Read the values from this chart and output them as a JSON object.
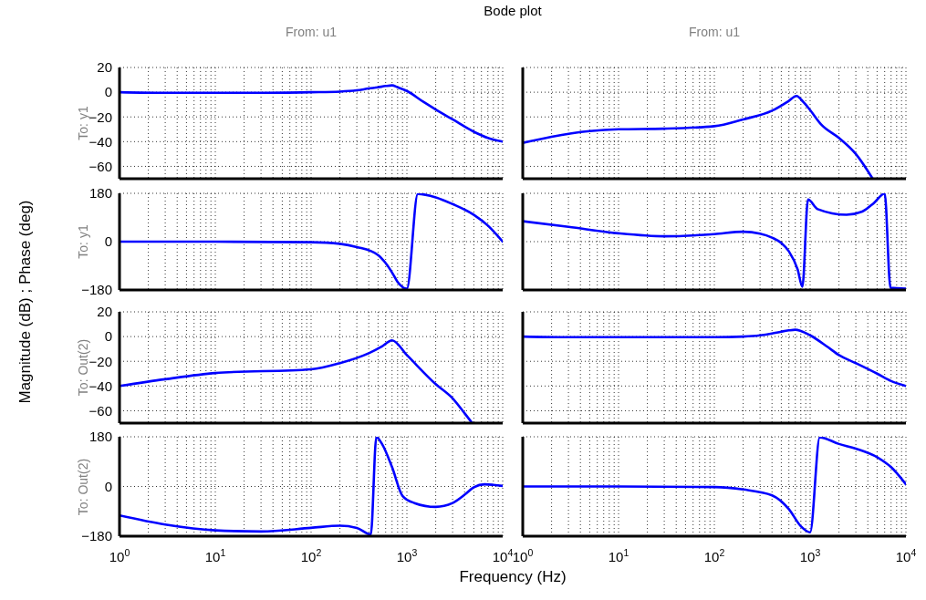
{
  "chart_data": [
    {
      "type": "line",
      "title": "Bode plot",
      "subtitle": "From: u1",
      "ylabel": "To: y1",
      "annotations": [
        "Magnitude (dB) ; Phase (deg)",
        "Frequency  (Hz)"
      ],
      "log": "x",
      "grid": true,
      "tick_labels": "y",
      "xlim": [
        1,
        10000
      ],
      "ylim": [
        -70,
        20
      ],
      "yticks": [
        -60,
        -40,
        -20,
        0,
        20
      ],
      "xticks": [
        1,
        2,
        3,
        4,
        5,
        6,
        7,
        8,
        9,
        10,
        20,
        30,
        40,
        50,
        60,
        70,
        80,
        90,
        100,
        200,
        300,
        400,
        500,
        600,
        700,
        800,
        900,
        1000,
        2000,
        3000,
        4000,
        5000,
        6000,
        7000,
        8000,
        9000,
        10000
      ],
      "x": [
        1,
        3,
        10,
        30,
        100,
        200,
        300,
        400,
        500,
        600,
        700,
        800,
        1000,
        1500,
        2000,
        3000,
        5000,
        7000,
        10000
      ],
      "series": [
        {
          "color": "#0000ff",
          "values": [
            0,
            -0.5,
            -0.5,
            -0.5,
            0,
            0.5,
            1.5,
            3,
            4,
            5,
            5.5,
            4,
            1,
            -8,
            -14,
            -22,
            -32,
            -37,
            -40
          ]
        }
      ]
    },
    {
      "type": "line",
      "subtitle": "From: u1",
      "log": "x",
      "grid": true,
      "tick_labels": false,
      "xlim": [
        1,
        10000
      ],
      "ylim": [
        -70,
        20
      ],
      "yticks": [
        -60,
        -40,
        -20,
        0,
        20
      ],
      "xticks": [
        1,
        2,
        3,
        4,
        5,
        6,
        7,
        8,
        9,
        10,
        20,
        30,
        40,
        50,
        60,
        70,
        80,
        90,
        100,
        200,
        300,
        400,
        500,
        600,
        700,
        800,
        900,
        1000,
        2000,
        3000,
        4000,
        5000,
        6000,
        7000,
        8000,
        9000,
        10000
      ],
      "x": [
        1,
        2,
        5,
        10,
        30,
        100,
        200,
        400,
        600,
        720,
        850,
        1000,
        1300,
        2000,
        3000,
        4500
      ],
      "series": [
        {
          "color": "#0000ff",
          "values": [
            -41,
            -36,
            -31.5,
            -30,
            -29.5,
            -27.5,
            -22,
            -15,
            -7,
            -3,
            -8,
            -14.5,
            -26,
            -37,
            -50,
            -70
          ]
        }
      ]
    },
    {
      "type": "line",
      "ylabel": "To: y1",
      "log": "x",
      "grid": true,
      "tick_labels": "y",
      "xlim": [
        1,
        10000
      ],
      "ylim": [
        -180,
        180
      ],
      "yticks": [
        -180,
        0,
        180
      ],
      "xticks": [
        1,
        2,
        3,
        4,
        5,
        6,
        7,
        8,
        9,
        10,
        20,
        30,
        40,
        50,
        60,
        70,
        80,
        90,
        100,
        200,
        300,
        400,
        500,
        600,
        700,
        800,
        900,
        1000,
        2000,
        3000,
        4000,
        5000,
        6000,
        7000,
        8000,
        9000,
        10000
      ],
      "x": [
        1,
        10,
        100,
        200,
        300,
        500,
        600,
        700,
        800,
        1000,
        1300,
        2000,
        3000,
        5000,
        7000,
        10000
      ],
      "series": [
        {
          "color": "#0000ff",
          "values": [
            0,
            0,
            -2,
            -8,
            -20,
            -50,
            -80,
            -115,
            -150,
            -175,
            178,
            165,
            140,
            100,
            60,
            0
          ]
        }
      ]
    },
    {
      "type": "line",
      "log": "x",
      "grid": true,
      "tick_labels": false,
      "xlim": [
        1,
        10000
      ],
      "ylim": [
        -180,
        180
      ],
      "yticks": [
        -180,
        0,
        180
      ],
      "xticks": [
        1,
        2,
        3,
        4,
        5,
        6,
        7,
        8,
        9,
        10,
        20,
        30,
        40,
        50,
        60,
        70,
        80,
        90,
        100,
        200,
        300,
        400,
        500,
        600,
        700,
        800,
        900,
        1000,
        2000,
        3000,
        4000,
        5000,
        6000,
        7000,
        8000,
        9000,
        10000
      ],
      "x": [
        1,
        3,
        10,
        30,
        100,
        200,
        300,
        400,
        500,
        600,
        740,
        830,
        950,
        1200,
        2400,
        3500,
        4600,
        6000,
        6900,
        10000
      ],
      "series": [
        {
          "color": "#0000ff",
          "values": [
            76,
            55,
            31,
            20,
            28,
            37,
            30,
            15,
            -5,
            -36,
            -103,
            -168,
            157,
            121,
            100,
            112,
            143,
            179,
            -172,
            -175
          ]
        }
      ]
    },
    {
      "type": "line",
      "ylabel": "To: Out(2)",
      "log": "x",
      "grid": true,
      "tick_labels": "y",
      "xlim": [
        1,
        10000
      ],
      "ylim": [
        -70,
        20
      ],
      "yticks": [
        -60,
        -40,
        -20,
        0,
        20
      ],
      "xticks": [
        1,
        2,
        3,
        4,
        5,
        6,
        7,
        8,
        9,
        10,
        20,
        30,
        40,
        50,
        60,
        70,
        80,
        90,
        100,
        200,
        300,
        400,
        500,
        600,
        700,
        800,
        900,
        1000,
        2000,
        3000,
        4000,
        5000,
        6000,
        7000,
        8000,
        9000,
        10000
      ],
      "x": [
        1,
        3,
        10,
        100,
        200,
        400,
        550,
        700,
        1000,
        2000,
        3000,
        4000,
        4800
      ],
      "series": [
        {
          "color": "#0000ff",
          "values": [
            -40,
            -34.5,
            -29.5,
            -26.5,
            -21.5,
            -13.5,
            -8,
            -3,
            -15,
            -38.5,
            -50,
            -62,
            -70
          ]
        }
      ]
    },
    {
      "type": "line",
      "log": "x",
      "grid": true,
      "tick_labels": false,
      "xlim": [
        1,
        10000
      ],
      "ylim": [
        -70,
        20
      ],
      "yticks": [
        -60,
        -40,
        -20,
        0,
        20
      ],
      "xticks": [
        1,
        2,
        3,
        4,
        5,
        6,
        7,
        8,
        9,
        10,
        20,
        30,
        40,
        50,
        60,
        70,
        80,
        90,
        100,
        200,
        300,
        400,
        500,
        600,
        700,
        800,
        900,
        1000,
        2000,
        3000,
        4000,
        5000,
        6000,
        7000,
        8000,
        9000,
        10000
      ],
      "x": [
        1,
        3,
        10,
        30,
        100,
        200,
        300,
        400,
        500,
        600,
        700,
        800,
        1000,
        1500,
        2000,
        3000,
        5000,
        7000,
        10000
      ],
      "series": [
        {
          "color": "#0000ff",
          "values": [
            0,
            -0.5,
            -0.5,
            -0.5,
            -0.5,
            0,
            1,
            2.5,
            4,
            5,
            5.5,
            4.5,
            1,
            -8,
            -15,
            -21.5,
            -30,
            -36,
            -40
          ]
        }
      ]
    },
    {
      "type": "line",
      "ylabel": "To: Out(2)",
      "log": "x",
      "grid": true,
      "xlim": [
        1,
        10000
      ],
      "ylim": [
        -180,
        180
      ],
      "yticks": [
        -180,
        0,
        180
      ],
      "xticks": [
        {
          "value": 1,
          "label": "10$^{0}$"
        },
        {
          "value": 2,
          "label": null
        },
        {
          "value": 3,
          "label": null
        },
        {
          "value": 4,
          "label": null
        },
        {
          "value": 5,
          "label": null
        },
        {
          "value": 6,
          "label": null
        },
        {
          "value": 7,
          "label": null
        },
        {
          "value": 8,
          "label": null
        },
        {
          "value": 9,
          "label": null
        },
        {
          "value": 10,
          "label": "10$^{1}$"
        },
        {
          "value": 20,
          "label": null
        },
        {
          "value": 30,
          "label": null
        },
        {
          "value": 40,
          "label": null
        },
        {
          "value": 50,
          "label": null
        },
        {
          "value": 60,
          "label": null
        },
        {
          "value": 70,
          "label": null
        },
        {
          "value": 80,
          "label": null
        },
        {
          "value": 90,
          "label": null
        },
        {
          "value": 100,
          "label": "10$^{2}$"
        },
        {
          "value": 200,
          "label": null
        },
        {
          "value": 300,
          "label": null
        },
        {
          "value": 400,
          "label": null
        },
        {
          "value": 500,
          "label": null
        },
        {
          "value": 600,
          "label": null
        },
        {
          "value": 700,
          "label": null
        },
        {
          "value": 800,
          "label": null
        },
        {
          "value": 900,
          "label": null
        },
        {
          "value": 1000,
          "label": "10$^{3}$"
        },
        {
          "value": 2000,
          "label": null
        },
        {
          "value": 3000,
          "label": null
        },
        {
          "value": 4000,
          "label": null
        },
        {
          "value": 5000,
          "label": null
        },
        {
          "value": 6000,
          "label": null
        },
        {
          "value": 7000,
          "label": null
        },
        {
          "value": 8000,
          "label": null
        },
        {
          "value": 9000,
          "label": null
        },
        {
          "value": 10000,
          "label": "10$^{4}$"
        }
      ],
      "x": [
        1,
        3,
        10,
        30,
        100,
        200,
        300,
        420,
        480,
        550,
        700,
        900,
        1200,
        2000,
        3000,
        4000,
        5000,
        6500,
        8000,
        10000
      ],
      "series": [
        {
          "color": "#0000ff",
          "values": [
            -105,
            -138,
            -159,
            -163,
            -150,
            -142,
            -150,
            -174,
            179,
            154,
            70,
            -34,
            -60,
            -74,
            -60,
            -30,
            -3,
            8,
            6,
            2
          ]
        }
      ]
    },
    {
      "type": "line",
      "log": "x",
      "grid": true,
      "tick_labels": "x",
      "xlim": [
        1,
        10000
      ],
      "ylim": [
        -180,
        180
      ],
      "yticks": [
        -180,
        0,
        180
      ],
      "xticks": [
        {
          "value": 1,
          "label": "10$^{0}$"
        },
        {
          "value": 2,
          "label": null
        },
        {
          "value": 3,
          "label": null
        },
        {
          "value": 4,
          "label": null
        },
        {
          "value": 5,
          "label": null
        },
        {
          "value": 6,
          "label": null
        },
        {
          "value": 7,
          "label": null
        },
        {
          "value": 8,
          "label": null
        },
        {
          "value": 9,
          "label": null
        },
        {
          "value": 10,
          "label": "10$^{1}$"
        },
        {
          "value": 20,
          "label": null
        },
        {
          "value": 30,
          "label": null
        },
        {
          "value": 40,
          "label": null
        },
        {
          "value": 50,
          "label": null
        },
        {
          "value": 60,
          "label": null
        },
        {
          "value": 70,
          "label": null
        },
        {
          "value": 80,
          "label": null
        },
        {
          "value": 90,
          "label": null
        },
        {
          "value": 100,
          "label": "10$^{2}$"
        },
        {
          "value": 200,
          "label": null
        },
        {
          "value": 300,
          "label": null
        },
        {
          "value": 400,
          "label": null
        },
        {
          "value": 500,
          "label": null
        },
        {
          "value": 600,
          "label": null
        },
        {
          "value": 700,
          "label": null
        },
        {
          "value": 800,
          "label": null
        },
        {
          "value": 900,
          "label": null
        },
        {
          "value": 1000,
          "label": "10$^{3}$"
        },
        {
          "value": 2000,
          "label": null
        },
        {
          "value": 3000,
          "label": null
        },
        {
          "value": 4000,
          "label": null
        },
        {
          "value": 5000,
          "label": null
        },
        {
          "value": 6000,
          "label": null
        },
        {
          "value": 7000,
          "label": null
        },
        {
          "value": 8000,
          "label": null
        },
        {
          "value": 9000,
          "label": null
        },
        {
          "value": 10000,
          "label": "10$^{4}$"
        }
      ],
      "x": [
        1,
        10,
        100,
        200,
        400,
        600,
        800,
        1000,
        1260,
        2000,
        3000,
        5000,
        7000,
        10000
      ],
      "series": [
        {
          "color": "#0000ff",
          "values": [
            0,
            0,
            -2,
            -11,
            -32,
            -82,
            -144,
            -166,
            178,
            154,
            137,
            106,
            70,
            8
          ]
        }
      ]
    }
  ]
}
